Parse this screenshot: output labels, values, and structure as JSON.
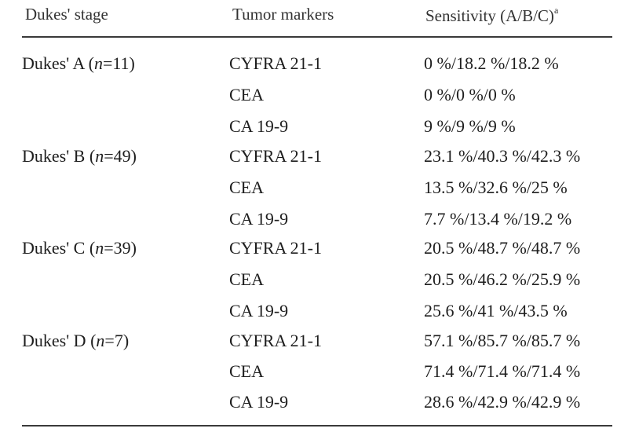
{
  "header": {
    "stage": "Dukes' stage",
    "markers": "Tumor markers",
    "sensitivity": "Sensitivity (A/B/C)",
    "sensitivity_note": "a"
  },
  "groups": [
    {
      "stage_label": "Dukes' A (",
      "n_label": "n",
      "n_value": "=11)",
      "rows": [
        {
          "marker": "CYFRA 21-1",
          "sensitivity": "0 %/18.2 %/18.2 %"
        },
        {
          "marker": "CEA",
          "sensitivity": "0 %/0 %/0 %"
        },
        {
          "marker": "CA 19-9",
          "sensitivity": "9 %/9 %/9 %"
        }
      ]
    },
    {
      "stage_label": "Dukes' B (",
      "n_label": "n",
      "n_value": "=49)",
      "rows": [
        {
          "marker": "CYFRA 21-1",
          "sensitivity": "23.1 %/40.3 %/42.3 %"
        },
        {
          "marker": "CEA",
          "sensitivity": "13.5 %/32.6 %/25 %"
        },
        {
          "marker": "CA 19-9",
          "sensitivity": "7.7 %/13.4 %/19.2 %"
        }
      ]
    },
    {
      "stage_label": "Dukes' C (",
      "n_label": "n",
      "n_value": "=39)",
      "rows": [
        {
          "marker": "CYFRA 21-1",
          "sensitivity": "20.5 %/48.7 %/48.7 %"
        },
        {
          "marker": "CEA",
          "sensitivity": "20.5 %/46.2 %/25.9 %"
        },
        {
          "marker": "CA 19-9",
          "sensitivity": "25.6 %/41 %/43.5 %"
        }
      ]
    },
    {
      "stage_label": "Dukes' D (",
      "n_label": "n",
      "n_value": "=7)",
      "rows": [
        {
          "marker": "CYFRA 21-1",
          "sensitivity": "57.1 %/85.7 %/85.7 %"
        },
        {
          "marker": "CEA",
          "sensitivity": "71.4 %/71.4 %/71.4 %"
        },
        {
          "marker": "CA 19-9",
          "sensitivity": "28.6 %/42.9 %/42.9 %"
        }
      ]
    }
  ]
}
